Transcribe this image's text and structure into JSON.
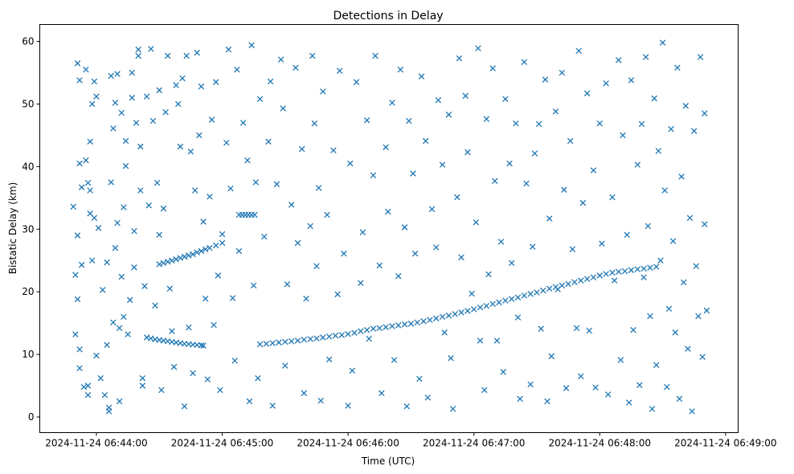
{
  "chart_data": {
    "type": "scatter",
    "title": "Detections in Delay",
    "xlabel": "Time (UTC)",
    "ylabel": "Bistatic Delay (km)",
    "x_units": "seconds after 2024-11-24 06:44:00",
    "xlim": [
      -27,
      306
    ],
    "ylim": [
      -2.5,
      62.7
    ],
    "xticks": [
      0,
      60,
      120,
      180,
      240,
      300
    ],
    "xtick_labels": [
      "2024-11-24 06:44:00",
      "2024-11-24 06:45:00",
      "2024-11-24 06:46:00",
      "2024-11-24 06:47:00",
      "2024-11-24 06:48:00",
      "2024-11-24 06:49:00"
    ],
    "yticks": [
      0,
      10,
      20,
      30,
      40,
      50,
      60
    ],
    "ytick_labels": [
      "0",
      "10",
      "20",
      "30",
      "40",
      "50",
      "60"
    ],
    "marker": "x",
    "color": "#1f77b4",
    "grid": false,
    "tracks": [
      {
        "name": "track-a",
        "points": [
          [
            24,
            12.7
          ],
          [
            26,
            12.55
          ],
          [
            28,
            12.4
          ],
          [
            30,
            12.3
          ],
          [
            32,
            12.2
          ],
          [
            34,
            12.1
          ],
          [
            36,
            12.0
          ],
          [
            38,
            11.9
          ],
          [
            40,
            11.8
          ],
          [
            42,
            11.7
          ],
          [
            44,
            11.65
          ],
          [
            46,
            11.55
          ],
          [
            48,
            11.5
          ],
          [
            50,
            11.45
          ],
          [
            51,
            11.4
          ]
        ]
      },
      {
        "name": "track-b",
        "points": [
          [
            30,
            24.4
          ],
          [
            32,
            24.6
          ],
          [
            34,
            24.8
          ],
          [
            36,
            25.0
          ],
          [
            38,
            25.2
          ],
          [
            40,
            25.4
          ],
          [
            42,
            25.6
          ],
          [
            44,
            25.8
          ],
          [
            46,
            26.0
          ],
          [
            48,
            26.3
          ],
          [
            50,
            26.5
          ],
          [
            52,
            26.8
          ],
          [
            54,
            27.0
          ],
          [
            57,
            27.4
          ],
          [
            60,
            27.8
          ]
        ]
      },
      {
        "name": "track-flat",
        "points": [
          [
            68,
            32.3
          ],
          [
            69.5,
            32.3
          ],
          [
            71,
            32.3
          ],
          [
            72.5,
            32.3
          ],
          [
            74,
            32.3
          ],
          [
            75.5,
            32.3
          ]
        ]
      },
      {
        "name": "track-c",
        "points": [
          [
            78,
            11.6
          ],
          [
            81,
            11.7
          ],
          [
            84,
            11.8
          ],
          [
            87,
            11.9
          ],
          [
            90,
            12.0
          ],
          [
            93,
            12.1
          ],
          [
            96,
            12.2
          ],
          [
            99,
            12.35
          ],
          [
            102,
            12.45
          ],
          [
            105,
            12.55
          ],
          [
            108,
            12.7
          ],
          [
            111,
            12.85
          ],
          [
            114,
            13.0
          ],
          [
            117,
            13.1
          ],
          [
            120,
            13.25
          ],
          [
            123,
            13.45
          ],
          [
            126,
            13.7
          ],
          [
            129,
            13.9
          ],
          [
            132,
            14.1
          ],
          [
            135,
            14.2
          ],
          [
            138,
            14.35
          ],
          [
            141,
            14.5
          ],
          [
            144,
            14.65
          ],
          [
            147,
            14.8
          ],
          [
            150,
            14.9
          ],
          [
            153,
            15.1
          ],
          [
            156,
            15.3
          ],
          [
            159,
            15.5
          ],
          [
            162,
            15.75
          ],
          [
            165,
            16.0
          ],
          [
            168,
            16.2
          ],
          [
            171,
            16.45
          ],
          [
            174,
            16.7
          ],
          [
            177,
            16.95
          ],
          [
            180,
            17.2
          ],
          [
            183,
            17.5
          ],
          [
            186,
            17.75
          ],
          [
            189,
            18.05
          ],
          [
            192,
            18.3
          ],
          [
            195,
            18.6
          ],
          [
            198,
            18.85
          ],
          [
            201,
            19.1
          ],
          [
            204,
            19.4
          ],
          [
            207,
            19.65
          ],
          [
            210,
            19.9
          ],
          [
            213,
            20.2
          ],
          [
            216,
            20.5
          ],
          [
            219,
            20.75
          ],
          [
            222,
            21.0
          ],
          [
            225,
            21.25
          ],
          [
            228,
            21.55
          ],
          [
            231,
            21.8
          ],
          [
            234,
            22.05
          ],
          [
            237,
            22.3
          ],
          [
            240,
            22.6
          ],
          [
            243,
            22.85
          ],
          [
            246,
            23.05
          ],
          [
            249,
            23.2
          ],
          [
            252,
            23.3
          ],
          [
            255,
            23.45
          ],
          [
            258,
            23.6
          ],
          [
            261,
            23.7
          ],
          [
            264,
            23.85
          ],
          [
            267,
            24.0
          ]
        ]
      }
    ],
    "noise": [
      [
        -11,
        33.6
      ],
      [
        -10,
        22.7
      ],
      [
        -10,
        13.2
      ],
      [
        -9,
        56.5
      ],
      [
        -9,
        29
      ],
      [
        -9,
        18.8
      ],
      [
        -8,
        53.8
      ],
      [
        -8,
        40.5
      ],
      [
        -8,
        10.8
      ],
      [
        -8,
        7.8
      ],
      [
        -7,
        24.3
      ],
      [
        -7,
        36.7
      ],
      [
        -6,
        4.8
      ],
      [
        -5,
        55.5
      ],
      [
        -5,
        41
      ],
      [
        -4,
        37.4
      ],
      [
        -4,
        5
      ],
      [
        -4,
        3.5
      ],
      [
        -3,
        44
      ],
      [
        -3,
        36.2
      ],
      [
        -3,
        32.5
      ],
      [
        -2,
        50
      ],
      [
        -2,
        25
      ],
      [
        -1,
        53.6
      ],
      [
        -1,
        31.8
      ],
      [
        0,
        51.2
      ],
      [
        0,
        9.8
      ],
      [
        1,
        30.2
      ],
      [
        2,
        6.2
      ],
      [
        3,
        20.3
      ],
      [
        4,
        3.5
      ],
      [
        5,
        11.5
      ],
      [
        5,
        24.7
      ],
      [
        6,
        1.5
      ],
      [
        6,
        0.9
      ],
      [
        7,
        54.5
      ],
      [
        7,
        37.5
      ],
      [
        8,
        46.1
      ],
      [
        8,
        15.1
      ],
      [
        9,
        50.2
      ],
      [
        9,
        27
      ],
      [
        10,
        54.8
      ],
      [
        10,
        31
      ],
      [
        11,
        14.2
      ],
      [
        11,
        2.5
      ],
      [
        12,
        48.6
      ],
      [
        12,
        22.4
      ],
      [
        13,
        33.5
      ],
      [
        13,
        16
      ],
      [
        14,
        44.1
      ],
      [
        14,
        40.1
      ],
      [
        15,
        13.2
      ],
      [
        16,
        18.7
      ],
      [
        17,
        51
      ],
      [
        17,
        55
      ],
      [
        18,
        29.7
      ],
      [
        18,
        23.9
      ],
      [
        19,
        47
      ],
      [
        20,
        58.7
      ],
      [
        20,
        57.7
      ],
      [
        21,
        43.2
      ],
      [
        21,
        36.2
      ],
      [
        22,
        5
      ],
      [
        22,
        6.2
      ],
      [
        23,
        20.9
      ],
      [
        24,
        51.2
      ],
      [
        25,
        33.8
      ],
      [
        26,
        58.8
      ],
      [
        27,
        47.3
      ],
      [
        28,
        17.8
      ],
      [
        29,
        37.4
      ],
      [
        30,
        52.2
      ],
      [
        30,
        29.1
      ],
      [
        31,
        4.3
      ],
      [
        32,
        33.3
      ],
      [
        33,
        48.7
      ],
      [
        34,
        57.7
      ],
      [
        35,
        20.5
      ],
      [
        36,
        13.7
      ],
      [
        37,
        8
      ],
      [
        38,
        53
      ],
      [
        39,
        50
      ],
      [
        40,
        43.2
      ],
      [
        41,
        54.1
      ],
      [
        42,
        1.7
      ],
      [
        43,
        57.7
      ],
      [
        44,
        14.3
      ],
      [
        45,
        42.4
      ],
      [
        46,
        7
      ],
      [
        47,
        36.2
      ],
      [
        48,
        58.2
      ],
      [
        49,
        45
      ],
      [
        50,
        52.8
      ],
      [
        51,
        31.2
      ],
      [
        52,
        18.9
      ],
      [
        53,
        6
      ],
      [
        54,
        35.2
      ],
      [
        55,
        47.5
      ],
      [
        56,
        14.7
      ],
      [
        57,
        53.5
      ],
      [
        58,
        22.6
      ],
      [
        59,
        4.3
      ],
      [
        60,
        29.2
      ],
      [
        62,
        43.8
      ],
      [
        63,
        58.7
      ],
      [
        64,
        36.5
      ],
      [
        65,
        19
      ],
      [
        66,
        9
      ],
      [
        67,
        55.5
      ],
      [
        68,
        26.5
      ],
      [
        70,
        47
      ],
      [
        72,
        41
      ],
      [
        73,
        2.5
      ],
      [
        74,
        59.4
      ],
      [
        75,
        21
      ],
      [
        76,
        37.5
      ],
      [
        77,
        6.2
      ],
      [
        78,
        50.8
      ],
      [
        80,
        28.8
      ],
      [
        82,
        44
      ],
      [
        83,
        53.6
      ],
      [
        84,
        1.8
      ],
      [
        86,
        37.2
      ],
      [
        88,
        57.1
      ],
      [
        89,
        49.3
      ],
      [
        90,
        8.2
      ],
      [
        91,
        21.2
      ],
      [
        93,
        33.9
      ],
      [
        95,
        55.8
      ],
      [
        96,
        27.8
      ],
      [
        98,
        42.8
      ],
      [
        99,
        3.8
      ],
      [
        100,
        18.9
      ],
      [
        102,
        30.5
      ],
      [
        103,
        57.7
      ],
      [
        104,
        46.9
      ],
      [
        105,
        24.1
      ],
      [
        106,
        36.6
      ],
      [
        107,
        2.6
      ],
      [
        108,
        52
      ],
      [
        110,
        32.3
      ],
      [
        111,
        9.2
      ],
      [
        113,
        42.6
      ],
      [
        115,
        19.6
      ],
      [
        116,
        55.3
      ],
      [
        118,
        26.1
      ],
      [
        120,
        1.8
      ],
      [
        121,
        40.5
      ],
      [
        122,
        7.4
      ],
      [
        124,
        53.5
      ],
      [
        126,
        21.4
      ],
      [
        127,
        29.5
      ],
      [
        129,
        47.4
      ],
      [
        130,
        12.5
      ],
      [
        132,
        38.6
      ],
      [
        133,
        57.7
      ],
      [
        135,
        24.2
      ],
      [
        136,
        3.8
      ],
      [
        138,
        43.1
      ],
      [
        139,
        32.8
      ],
      [
        141,
        50.2
      ],
      [
        142,
        9.1
      ],
      [
        144,
        22.5
      ],
      [
        145,
        55.5
      ],
      [
        147,
        30.3
      ],
      [
        148,
        1.7
      ],
      [
        149,
        47.3
      ],
      [
        151,
        38.9
      ],
      [
        152,
        26.1
      ],
      [
        154,
        6.1
      ],
      [
        155,
        54.4
      ],
      [
        157,
        44.1
      ],
      [
        158,
        3.1
      ],
      [
        160,
        33.2
      ],
      [
        162,
        27.1
      ],
      [
        163,
        50.6
      ],
      [
        165,
        40.3
      ],
      [
        166,
        13.5
      ],
      [
        168,
        48.3
      ],
      [
        169,
        9.4
      ],
      [
        170,
        1.3
      ],
      [
        172,
        35.1
      ],
      [
        173,
        57.3
      ],
      [
        174,
        25.5
      ],
      [
        176,
        51.3
      ],
      [
        177,
        42.3
      ],
      [
        179,
        19.7
      ],
      [
        181,
        31.1
      ],
      [
        182,
        58.9
      ],
      [
        183,
        12.2
      ],
      [
        185,
        4.3
      ],
      [
        186,
        47.6
      ],
      [
        187,
        22.8
      ],
      [
        189,
        55.7
      ],
      [
        190,
        37.7
      ],
      [
        191,
        12.2
      ],
      [
        193,
        28
      ],
      [
        194,
        7.2
      ],
      [
        195,
        50.8
      ],
      [
        197,
        40.5
      ],
      [
        198,
        24.6
      ],
      [
        200,
        46.9
      ],
      [
        201,
        15.9
      ],
      [
        202,
        2.9
      ],
      [
        204,
        56.7
      ],
      [
        205,
        37.3
      ],
      [
        207,
        5.2
      ],
      [
        208,
        27.2
      ],
      [
        209,
        42.1
      ],
      [
        211,
        46.8
      ],
      [
        212,
        14.1
      ],
      [
        214,
        53.9
      ],
      [
        215,
        2.5
      ],
      [
        216,
        31.7
      ],
      [
        217,
        9.7
      ],
      [
        219,
        48.8
      ],
      [
        220,
        20.4
      ],
      [
        222,
        55
      ],
      [
        223,
        36.3
      ],
      [
        224,
        4.6
      ],
      [
        226,
        44.1
      ],
      [
        227,
        26.8
      ],
      [
        229,
        14.2
      ],
      [
        230,
        58.5
      ],
      [
        231,
        6.5
      ],
      [
        232,
        34.2
      ],
      [
        234,
        51.7
      ],
      [
        235,
        13.8
      ],
      [
        237,
        39.4
      ],
      [
        238,
        4.7
      ],
      [
        240,
        46.9
      ],
      [
        241,
        27.7
      ],
      [
        243,
        53.3
      ],
      [
        244,
        3.6
      ],
      [
        246,
        35.1
      ],
      [
        247,
        21.8
      ],
      [
        249,
        57
      ],
      [
        250,
        9.1
      ],
      [
        251,
        45
      ],
      [
        253,
        29.1
      ],
      [
        254,
        2.3
      ],
      [
        255,
        53.8
      ],
      [
        256,
        13.9
      ],
      [
        258,
        40.3
      ],
      [
        259,
        5.1
      ],
      [
        260,
        46.8
      ],
      [
        261,
        22.3
      ],
      [
        262,
        57.5
      ],
      [
        263,
        30.5
      ],
      [
        264,
        16.1
      ],
      [
        265,
        1.3
      ],
      [
        266,
        50.9
      ],
      [
        267,
        8.3
      ],
      [
        268,
        42.5
      ],
      [
        269,
        25
      ],
      [
        270,
        59.8
      ],
      [
        271,
        36.2
      ],
      [
        272,
        4.8
      ],
      [
        273,
        17.3
      ],
      [
        274,
        46
      ],
      [
        275,
        28.1
      ],
      [
        276,
        13.5
      ],
      [
        277,
        55.8
      ],
      [
        278,
        2.9
      ],
      [
        279,
        38.4
      ],
      [
        280,
        21.5
      ],
      [
        281,
        49.7
      ],
      [
        282,
        10.9
      ],
      [
        283,
        31.8
      ],
      [
        284,
        0.9
      ],
      [
        285,
        45.7
      ],
      [
        286,
        24.1
      ],
      [
        287,
        16.1
      ],
      [
        288,
        57.5
      ],
      [
        289,
        9.6
      ],
      [
        290,
        48.5
      ],
      [
        290,
        30.8
      ],
      [
        291,
        17
      ]
    ]
  }
}
